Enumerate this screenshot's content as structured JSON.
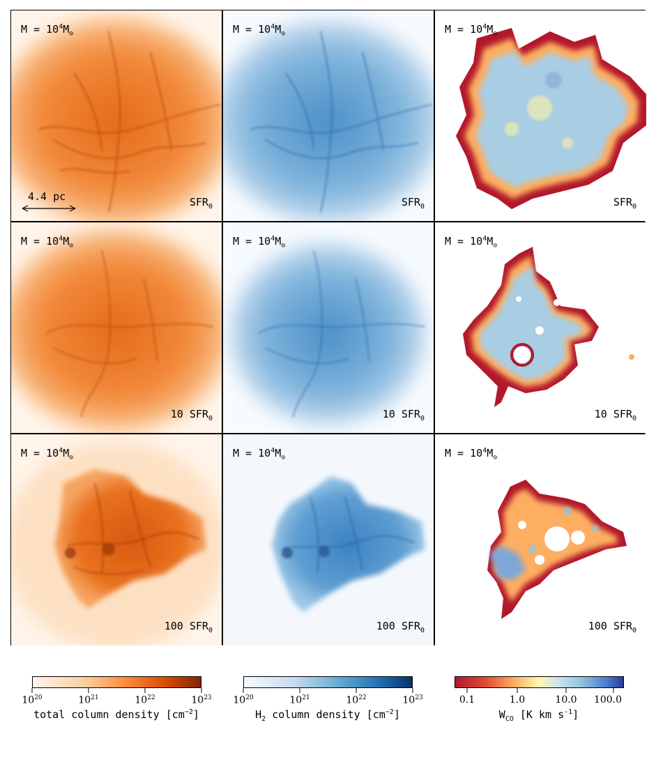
{
  "colors": {
    "orange_map": [
      "#fff5eb",
      "#fdd0a2",
      "#fd8d3c",
      "#d94801",
      "#7f2704"
    ],
    "blue_map": [
      "#f7fbff",
      "#c6dbef",
      "#6baed6",
      "#2171b5",
      "#08306b"
    ],
    "wco_map": [
      "#b2182b",
      "#e34a33",
      "#fdae61",
      "#fff7b2",
      "#c7e3ef",
      "#92c5de",
      "#4a7bd0",
      "#2a3a9a"
    ]
  },
  "scale_bar": {
    "label": "4.4 pc"
  },
  "rows": [
    {
      "mass_prefix": "M = 10",
      "mass_exp": "4",
      "mass_unit": "M",
      "mass_sub": "⊙",
      "sfr_label": "SFR",
      "sfr_sub": "0"
    },
    {
      "mass_prefix": "M = 10",
      "mass_exp": "4",
      "mass_unit": "M",
      "mass_sub": "⊙",
      "sfr_label": "10 SFR",
      "sfr_sub": "0"
    },
    {
      "mass_prefix": "M = 10",
      "mass_exp": "4",
      "mass_unit": "M",
      "mass_sub": "⊙",
      "sfr_label": "100 SFR",
      "sfr_sub": "0"
    }
  ],
  "colorbars": [
    {
      "ticks": [
        {
          "base": "10",
          "exp": "20"
        },
        {
          "base": "10",
          "exp": "21"
        },
        {
          "base": "10",
          "exp": "22"
        },
        {
          "base": "10",
          "exp": "23"
        }
      ],
      "title": "total column density [cm",
      "title_exp": "−2",
      "title_end": "]"
    },
    {
      "ticks": [
        {
          "base": "10",
          "exp": "20"
        },
        {
          "base": "10",
          "exp": "21"
        },
        {
          "base": "10",
          "exp": "22"
        },
        {
          "base": "10",
          "exp": "23"
        }
      ],
      "title_pre": "H",
      "title_sub": "2",
      "title": " column density [cm",
      "title_exp": "−2",
      "title_end": "]"
    },
    {
      "ticks_plain": [
        "0.1",
        "1.0",
        "10.0",
        "100.0"
      ],
      "title_pre": "W",
      "title_sub": "CO",
      "title": " [K km s",
      "title_exp": "-1",
      "title_end": "]"
    }
  ]
}
